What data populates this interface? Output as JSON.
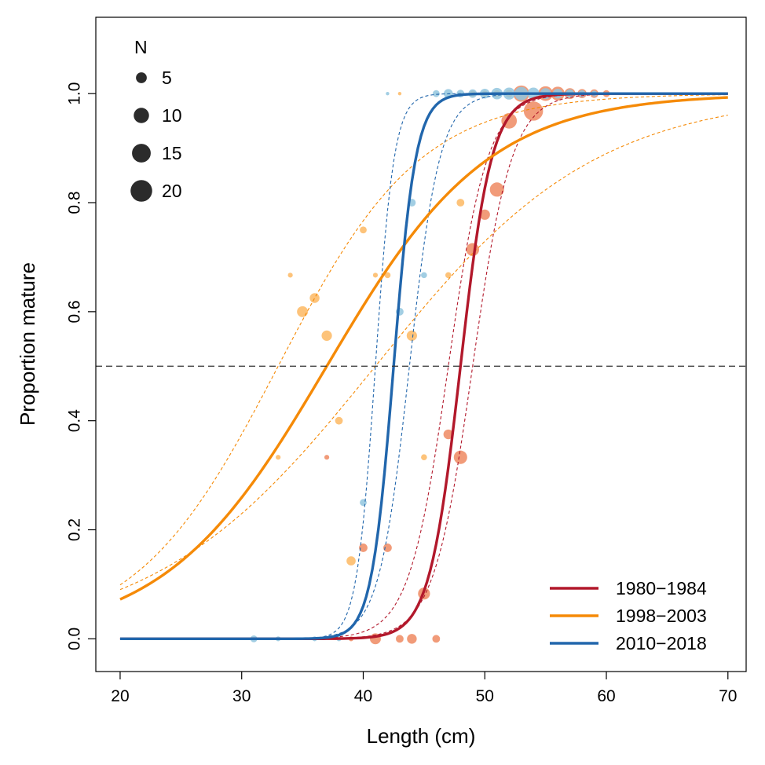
{
  "chart_data": {
    "type": "scatter",
    "xlabel": "Length (cm)",
    "ylabel": "Proportion mature",
    "xlim": [
      18,
      71.5
    ],
    "ylim": [
      -0.06,
      1.14
    ],
    "x_ticks": [
      20,
      30,
      40,
      50,
      60,
      70
    ],
    "y_ticks": [
      0.0,
      0.2,
      0.4,
      0.6,
      0.8,
      1.0
    ],
    "x_tick_labels": [
      "20",
      "30",
      "40",
      "50",
      "60",
      "70"
    ],
    "y_tick_labels": [
      "0.0",
      "0.2",
      "0.4",
      "0.6",
      "0.8",
      "1.0"
    ],
    "reference_line_y": 0.5,
    "size_legend": {
      "title": "N",
      "entries": [
        {
          "n": 5,
          "label": "5"
        },
        {
          "n": 10,
          "label": "10"
        },
        {
          "n": 15,
          "label": "15"
        },
        {
          "n": 20,
          "label": "20"
        }
      ],
      "placement": "top-left"
    },
    "legend_placement": "bottom-right",
    "series": [
      {
        "name": "1980−1984",
        "color": "#b2182b",
        "point_color": "#ef8a62",
        "fit": {
          "x50": 48.0,
          "slope": 0.78
        },
        "ci_lower": {
          "x50": 49.0,
          "slope": 0.62
        },
        "ci_upper": {
          "x50": 47.0,
          "slope": 0.62
        },
        "points": [
          {
            "x": 37,
            "y": 0.333,
            "n": 2
          },
          {
            "x": 39,
            "y": 0.0,
            "n": 2
          },
          {
            "x": 40,
            "y": 0.167,
            "n": 6
          },
          {
            "x": 41,
            "y": 0.0,
            "n": 10
          },
          {
            "x": 42,
            "y": 0.167,
            "n": 6
          },
          {
            "x": 43,
            "y": 0.0,
            "n": 5
          },
          {
            "x": 44,
            "y": 0.0,
            "n": 8
          },
          {
            "x": 45,
            "y": 0.083,
            "n": 12
          },
          {
            "x": 46,
            "y": 0.0,
            "n": 5
          },
          {
            "x": 47,
            "y": 0.375,
            "n": 8
          },
          {
            "x": 48,
            "y": 0.333,
            "n": 15
          },
          {
            "x": 49,
            "y": 0.714,
            "n": 14
          },
          {
            "x": 50,
            "y": 0.778,
            "n": 9
          },
          {
            "x": 51,
            "y": 0.824,
            "n": 17
          },
          {
            "x": 52,
            "y": 0.95,
            "n": 20
          },
          {
            "x": 53,
            "y": 1.0,
            "n": 22
          },
          {
            "x": 54,
            "y": 0.968,
            "n": 31
          },
          {
            "x": 55,
            "y": 1.0,
            "n": 18
          },
          {
            "x": 56,
            "y": 1.0,
            "n": 16
          },
          {
            "x": 57,
            "y": 1.0,
            "n": 10
          },
          {
            "x": 58,
            "y": 1.0,
            "n": 7
          },
          {
            "x": 59,
            "y": 1.0,
            "n": 6
          },
          {
            "x": 60,
            "y": 1.0,
            "n": 4
          }
        ]
      },
      {
        "name": "1998−2003",
        "color": "#f58a07",
        "point_color": "#fdb863",
        "fit": {
          "x50": 37.0,
          "slope": 0.15
        },
        "ci_lower": {
          "x50": 41.0,
          "slope": 0.11
        },
        "ci_upper": {
          "x50": 33.0,
          "slope": 0.17
        },
        "points": [
          {
            "x": 33,
            "y": 0.333,
            "n": 2
          },
          {
            "x": 34,
            "y": 0.667,
            "n": 2
          },
          {
            "x": 35,
            "y": 0.6,
            "n": 10
          },
          {
            "x": 36,
            "y": 0.625,
            "n": 8
          },
          {
            "x": 37,
            "y": 0.556,
            "n": 9
          },
          {
            "x": 38,
            "y": 0.4,
            "n": 5
          },
          {
            "x": 39,
            "y": 0.143,
            "n": 7
          },
          {
            "x": 40,
            "y": 0.75,
            "n": 4
          },
          {
            "x": 41,
            "y": 0.667,
            "n": 2
          },
          {
            "x": 42,
            "y": 0.667,
            "n": 3
          },
          {
            "x": 43,
            "y": 1.0,
            "n": 1
          },
          {
            "x": 44,
            "y": 0.556,
            "n": 9
          },
          {
            "x": 45,
            "y": 0.333,
            "n": 3
          },
          {
            "x": 47,
            "y": 0.667,
            "n": 3
          },
          {
            "x": 48,
            "y": 0.8,
            "n": 5
          },
          {
            "x": 49,
            "y": 1.0,
            "n": 3
          },
          {
            "x": 50,
            "y": 1.0,
            "n": 3
          },
          {
            "x": 51,
            "y": 1.0,
            "n": 4
          },
          {
            "x": 52,
            "y": 1.0,
            "n": 5
          },
          {
            "x": 55,
            "y": 1.0,
            "n": 4
          },
          {
            "x": 57,
            "y": 1.0,
            "n": 3
          }
        ]
      },
      {
        "name": "2010−2018",
        "color": "#2166ac",
        "point_color": "#92c5de",
        "fit": {
          "x50": 42.5,
          "slope": 1.1
        },
        "ci_lower": {
          "x50": 43.8,
          "slope": 0.8
        },
        "ci_upper": {
          "x50": 41.0,
          "slope": 1.3
        },
        "points": [
          {
            "x": 31,
            "y": 0.0,
            "n": 4
          },
          {
            "x": 33,
            "y": 0.0,
            "n": 2
          },
          {
            "x": 36,
            "y": 0.0,
            "n": 2
          },
          {
            "x": 38,
            "y": 0.0,
            "n": 2
          },
          {
            "x": 40,
            "y": 0.25,
            "n": 4
          },
          {
            "x": 42,
            "y": 1.0,
            "n": 1
          },
          {
            "x": 43,
            "y": 0.6,
            "n": 5
          },
          {
            "x": 44,
            "y": 0.8,
            "n": 5
          },
          {
            "x": 45,
            "y": 0.667,
            "n": 3
          },
          {
            "x": 46,
            "y": 1.0,
            "n": 4
          },
          {
            "x": 47,
            "y": 1.0,
            "n": 7
          },
          {
            "x": 48,
            "y": 1.0,
            "n": 5
          },
          {
            "x": 49,
            "y": 1.0,
            "n": 6
          },
          {
            "x": 50,
            "y": 1.0,
            "n": 8
          },
          {
            "x": 51,
            "y": 1.0,
            "n": 11
          },
          {
            "x": 52,
            "y": 1.0,
            "n": 12
          },
          {
            "x": 53,
            "y": 1.0,
            "n": 15
          },
          {
            "x": 54,
            "y": 1.0,
            "n": 12
          },
          {
            "x": 55,
            "y": 1.0,
            "n": 10
          },
          {
            "x": 56,
            "y": 1.0,
            "n": 8
          },
          {
            "x": 57,
            "y": 1.0,
            "n": 6
          },
          {
            "x": 58,
            "y": 1.0,
            "n": 4
          },
          {
            "x": 59,
            "y": 1.0,
            "n": 3
          }
        ]
      }
    ]
  }
}
